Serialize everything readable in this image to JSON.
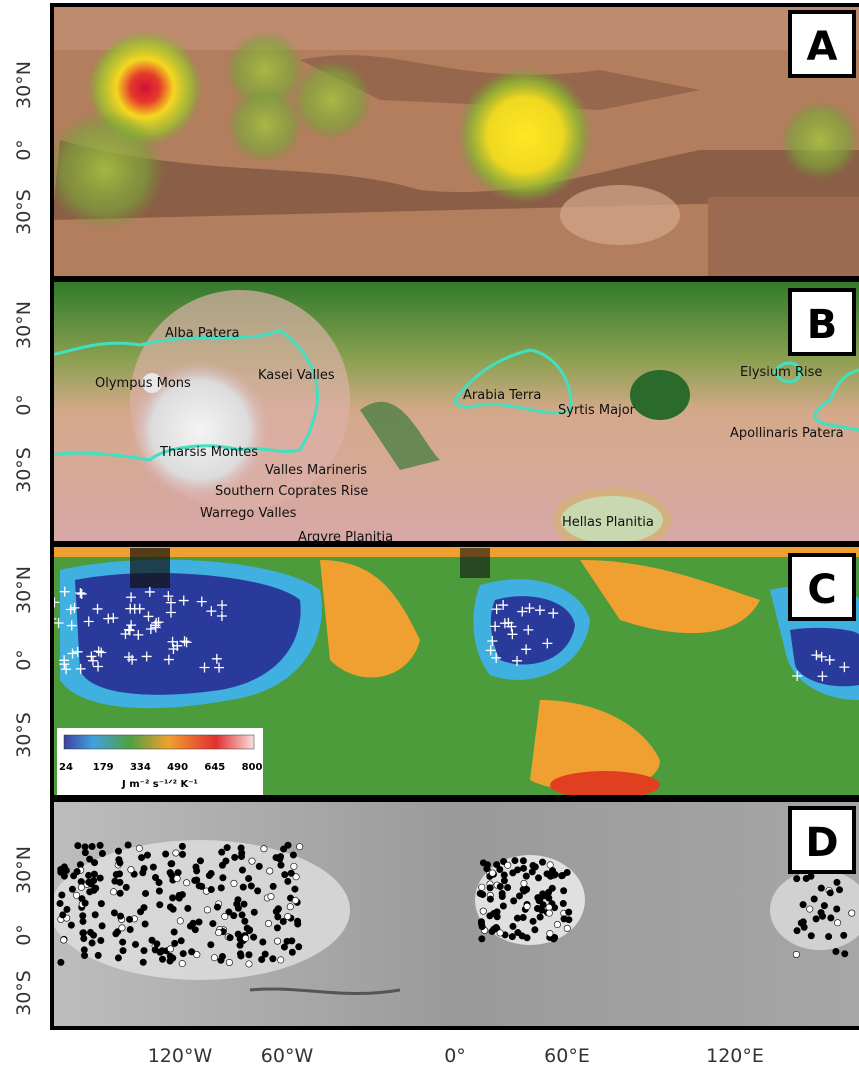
{
  "panels": [
    {
      "label": "A",
      "lat_labels": [
        "30°N",
        "0°",
        "30°S"
      ]
    },
    {
      "label": "B",
      "lat_labels": [
        "30°N",
        "0°",
        "30°S"
      ],
      "features": [
        "Alba Patera",
        "Olympus Mons",
        "Kasei Valles",
        "Arabia Terra",
        "Syrtis Major",
        "Elysium Rise",
        "Apollinaris Patera",
        "Tharsis Montes",
        "Valles Marineris",
        "Southern Coprates Rise",
        "Warrego Valles",
        "Argyre Planitia",
        "Hellas Planitia"
      ]
    },
    {
      "label": "C",
      "lat_labels": [
        "30°N",
        "0°",
        "30°S"
      ],
      "colorbar": {
        "ticks": [
          "24",
          "179",
          "334",
          "490",
          "645",
          "800"
        ],
        "unit": "J m⁻² s⁻¹ᐟ² K⁻¹"
      }
    },
    {
      "label": "D",
      "lat_labels": [
        "30°N",
        "0°",
        "30°S"
      ]
    }
  ],
  "lon_labels": [
    "120°W",
    "60°W",
    "0°",
    "60°E",
    "120°E"
  ]
}
